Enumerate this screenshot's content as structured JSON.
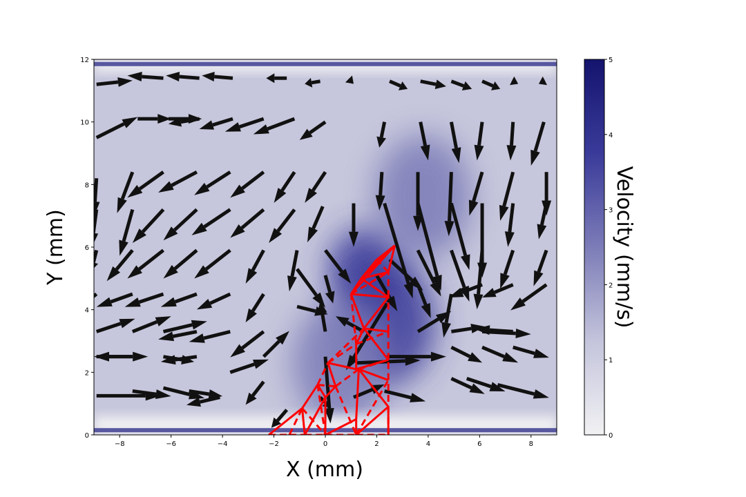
{
  "chart_data": {
    "type": "heatmap",
    "xlabel": "X (mm)",
    "ylabel": "Y (mm)",
    "xlim": [
      -9,
      9
    ],
    "ylim": [
      0,
      12
    ],
    "x_ticks": [
      -8,
      -6,
      -4,
      -2,
      0,
      2,
      4,
      6,
      8
    ],
    "y_ticks": [
      0,
      2,
      4,
      6,
      8,
      10,
      12
    ],
    "colorbar": {
      "label": "Velocity (mm/s)",
      "range": [
        0,
        5
      ],
      "ticks": [
        0,
        1,
        2,
        3,
        4,
        5
      ],
      "colormap": [
        "#f1f1f3",
        "#c4c4dc",
        "#7c7cb8",
        "#3a3a9a",
        "#14146e"
      ]
    },
    "velocity_hotspots": [
      {
        "x": 1.6,
        "y": 5.3,
        "velocity": 4.0
      },
      {
        "x": 2.4,
        "y": 3.6,
        "velocity": 3.5
      },
      {
        "x": 3.8,
        "y": 7.6,
        "velocity": 2.6
      },
      {
        "x": 0.6,
        "y": 2.3,
        "velocity": 1.9
      }
    ],
    "background_velocity": 1.0,
    "wall_lines": [
      0.15,
      11.85
    ],
    "quiver": {
      "color": "#111111",
      "vectors": [
        {
          "x": -8.9,
          "y": 11.2,
          "u": 1.4,
          "v": 0.15
        },
        {
          "x": -6.3,
          "y": 11.4,
          "u": -1.4,
          "v": 0.1
        },
        {
          "x": -4.9,
          "y": 11.4,
          "u": -1.3,
          "v": 0.1
        },
        {
          "x": -3.6,
          "y": 11.4,
          "u": -1.2,
          "v": 0.1
        },
        {
          "x": -1.5,
          "y": 11.4,
          "u": -0.8,
          "v": 0.0
        },
        {
          "x": -0.2,
          "y": 11.3,
          "u": -0.6,
          "v": -0.1
        },
        {
          "x": 1.0,
          "y": 11.3,
          "u": 0.1,
          "v": -0.1
        },
        {
          "x": 2.5,
          "y": 11.3,
          "u": 0.7,
          "v": -0.3
        },
        {
          "x": 3.7,
          "y": 11.3,
          "u": 1.0,
          "v": -0.2
        },
        {
          "x": 4.9,
          "y": 11.3,
          "u": 0.8,
          "v": -0.3
        },
        {
          "x": 6.1,
          "y": 11.3,
          "u": 0.7,
          "v": -0.3
        },
        {
          "x": 7.3,
          "y": 11.3,
          "u": 0.2,
          "v": -0.1
        },
        {
          "x": 8.5,
          "y": 11.3,
          "u": -0.2,
          "v": -0.1
        },
        {
          "x": -8.9,
          "y": 9.5,
          "u": 1.6,
          "v": 0.8
        },
        {
          "x": -7.3,
          "y": 10.1,
          "u": 1.3,
          "v": 0.0
        },
        {
          "x": -6.1,
          "y": 10.1,
          "u": 1.3,
          "v": 0.0
        },
        {
          "x": -4.9,
          "y": 10.1,
          "u": -1.2,
          "v": -0.2
        },
        {
          "x": -3.6,
          "y": 10.1,
          "u": -1.3,
          "v": -0.4
        },
        {
          "x": -2.4,
          "y": 10.1,
          "u": -1.5,
          "v": -0.5
        },
        {
          "x": -1.2,
          "y": 10.1,
          "u": -1.6,
          "v": -0.6
        },
        {
          "x": 0.0,
          "y": 10.0,
          "u": -1.0,
          "v": -0.7
        },
        {
          "x": 2.3,
          "y": 10.0,
          "u": -0.2,
          "v": -1.0
        },
        {
          "x": 3.7,
          "y": 10.0,
          "u": 0.3,
          "v": -1.5
        },
        {
          "x": 4.9,
          "y": 10.0,
          "u": 0.3,
          "v": -1.6
        },
        {
          "x": 6.1,
          "y": 10.0,
          "u": -0.2,
          "v": -1.5
        },
        {
          "x": 7.3,
          "y": 10.0,
          "u": -0.1,
          "v": -1.5
        },
        {
          "x": 8.5,
          "y": 10.0,
          "u": -0.5,
          "v": -1.7
        },
        {
          "x": -8.9,
          "y": 8.2,
          "u": -0.1,
          "v": -1.5
        },
        {
          "x": -7.5,
          "y": 8.4,
          "u": -0.6,
          "v": -1.6
        },
        {
          "x": -6.3,
          "y": 8.4,
          "u": -1.4,
          "v": -1.0
        },
        {
          "x": -5.0,
          "y": 8.4,
          "u": -1.5,
          "v": -0.8
        },
        {
          "x": -3.7,
          "y": 8.4,
          "u": -1.4,
          "v": -0.9
        },
        {
          "x": -2.4,
          "y": 8.4,
          "u": -1.3,
          "v": -1.0
        },
        {
          "x": -1.2,
          "y": 8.4,
          "u": -0.8,
          "v": -1.2
        },
        {
          "x": 0.0,
          "y": 8.4,
          "u": -0.8,
          "v": -1.2
        },
        {
          "x": 2.2,
          "y": 8.4,
          "u": -0.1,
          "v": -1.5
        },
        {
          "x": 3.6,
          "y": 8.4,
          "u": 0.0,
          "v": -2.3
        },
        {
          "x": 4.9,
          "y": 8.4,
          "u": -0.1,
          "v": -2.5
        },
        {
          "x": 6.1,
          "y": 8.4,
          "u": -0.5,
          "v": -1.7
        },
        {
          "x": 7.3,
          "y": 8.4,
          "u": -0.5,
          "v": -1.9
        },
        {
          "x": 8.6,
          "y": 8.4,
          "u": 0.0,
          "v": -1.7
        },
        {
          "x": -8.9,
          "y": 7.2,
          "u": -0.2,
          "v": -1.5
        },
        {
          "x": -7.5,
          "y": 7.2,
          "u": -0.5,
          "v": -1.8
        },
        {
          "x": -6.3,
          "y": 7.2,
          "u": -1.2,
          "v": -1.3
        },
        {
          "x": -5.0,
          "y": 7.2,
          "u": -1.3,
          "v": -1.2
        },
        {
          "x": -3.7,
          "y": 7.2,
          "u": -1.5,
          "v": -1.0
        },
        {
          "x": -2.4,
          "y": 7.2,
          "u": -1.3,
          "v": -1.1
        },
        {
          "x": -1.2,
          "y": 7.2,
          "u": -1.0,
          "v": -1.3
        },
        {
          "x": -0.1,
          "y": 7.3,
          "u": -0.6,
          "v": -1.4
        },
        {
          "x": 1.1,
          "y": 7.4,
          "u": 0.0,
          "v": -1.7
        },
        {
          "x": 2.3,
          "y": 7.4,
          "u": 1.1,
          "v": -3.7
        },
        {
          "x": 3.6,
          "y": 7.4,
          "u": 0.9,
          "v": -3.4
        },
        {
          "x": 4.9,
          "y": 7.4,
          "u": 0.7,
          "v": -2.6
        },
        {
          "x": 6.1,
          "y": 7.4,
          "u": 0.0,
          "v": -2.9
        },
        {
          "x": 7.3,
          "y": 7.4,
          "u": -0.2,
          "v": -1.7
        },
        {
          "x": 8.6,
          "y": 7.4,
          "u": -0.3,
          "v": -1.4
        },
        {
          "x": -8.9,
          "y": 5.9,
          "u": -0.2,
          "v": -0.8
        },
        {
          "x": -7.5,
          "y": 5.9,
          "u": -1.0,
          "v": -1.2
        },
        {
          "x": -6.3,
          "y": 5.9,
          "u": -1.4,
          "v": -1.1
        },
        {
          "x": -5.0,
          "y": 5.9,
          "u": -1.3,
          "v": -1.1
        },
        {
          "x": -3.7,
          "y": 5.9,
          "u": -1.4,
          "v": -1.1
        },
        {
          "x": -2.4,
          "y": 5.9,
          "u": -0.7,
          "v": -1.3
        },
        {
          "x": -1.1,
          "y": 5.9,
          "u": -0.3,
          "v": -1.6
        },
        {
          "x": 0.0,
          "y": 5.9,
          "u": 1.0,
          "v": -1.3
        },
        {
          "x": 2.5,
          "y": 5.6,
          "u": 1.3,
          "v": -1.2
        },
        {
          "x": 3.6,
          "y": 5.9,
          "u": 0.9,
          "v": -1.8
        },
        {
          "x": 4.9,
          "y": 5.9,
          "u": 0.7,
          "v": -2.0
        },
        {
          "x": 6.1,
          "y": 5.9,
          "u": -0.2,
          "v": -2.3
        },
        {
          "x": 7.3,
          "y": 5.9,
          "u": -0.5,
          "v": -1.5
        },
        {
          "x": 8.6,
          "y": 5.9,
          "u": -0.5,
          "v": -1.4
        },
        {
          "x": -8.9,
          "y": 4.5,
          "u": -1.2,
          "v": -0.9
        },
        {
          "x": -7.5,
          "y": 4.5,
          "u": -1.4,
          "v": -0.5
        },
        {
          "x": -6.3,
          "y": 4.5,
          "u": -1.5,
          "v": -0.5
        },
        {
          "x": -5.0,
          "y": 4.5,
          "u": -1.4,
          "v": -0.5
        },
        {
          "x": -3.7,
          "y": 4.5,
          "u": -1.3,
          "v": -0.6
        },
        {
          "x": -2.4,
          "y": 4.5,
          "u": -0.7,
          "v": -1.1
        },
        {
          "x": -1.1,
          "y": 5.3,
          "u": 1.1,
          "v": -1.5
        },
        {
          "x": 0.0,
          "y": 5.1,
          "u": 0.3,
          "v": -1.1
        },
        {
          "x": 2.0,
          "y": 5.1,
          "u": 0.8,
          "v": -1.4
        },
        {
          "x": 3.6,
          "y": 4.8,
          "u": 0.5,
          "v": -1.3
        },
        {
          "x": 4.9,
          "y": 4.5,
          "u": -0.3,
          "v": -1.7
        },
        {
          "x": 6.1,
          "y": 4.8,
          "u": -1.3,
          "v": -0.5
        },
        {
          "x": 7.3,
          "y": 4.8,
          "u": -1.2,
          "v": -0.5
        },
        {
          "x": 8.6,
          "y": 4.8,
          "u": -1.4,
          "v": -1.0
        },
        {
          "x": -8.9,
          "y": 3.3,
          "u": 1.5,
          "v": 0.5
        },
        {
          "x": -7.5,
          "y": 3.3,
          "u": 1.5,
          "v": 0.6
        },
        {
          "x": -6.3,
          "y": 3.3,
          "u": 1.7,
          "v": 0.4
        },
        {
          "x": -5.0,
          "y": 3.3,
          "u": -1.5,
          "v": -0.3
        },
        {
          "x": -3.7,
          "y": 3.3,
          "u": -1.6,
          "v": -0.4
        },
        {
          "x": -2.4,
          "y": 3.3,
          "u": -1.3,
          "v": -1.0
        },
        {
          "x": -1.1,
          "y": 4.1,
          "u": 1.2,
          "v": -0.3
        },
        {
          "x": 0.0,
          "y": 3.3,
          "u": -0.2,
          "v": 1.2
        },
        {
          "x": 1.5,
          "y": 3.3,
          "u": -1.1,
          "v": 0.6
        },
        {
          "x": 2.4,
          "y": 4.2,
          "u": -1.6,
          "v": -2.6
        },
        {
          "x": 3.6,
          "y": 3.3,
          "u": 1.3,
          "v": 0.8
        },
        {
          "x": 4.9,
          "y": 3.3,
          "u": 1.3,
          "v": 0.2
        },
        {
          "x": 6.1,
          "y": 3.3,
          "u": 1.9,
          "v": -0.1
        },
        {
          "x": 7.3,
          "y": 3.3,
          "u": -1.5,
          "v": 0.1
        },
        {
          "x": -8.9,
          "y": 2.5,
          "u": 2.0,
          "v": 0.0
        },
        {
          "x": -7.5,
          "y": 2.5,
          "u": -1.5,
          "v": 0.0
        },
        {
          "x": -6.3,
          "y": 2.5,
          "u": 1.2,
          "v": -0.2
        },
        {
          "x": -5.0,
          "y": 2.5,
          "u": -1.4,
          "v": -0.2
        },
        {
          "x": -3.7,
          "y": 2.0,
          "u": 1.5,
          "v": 0.5
        },
        {
          "x": -2.4,
          "y": 2.5,
          "u": 1.0,
          "v": 1.0
        },
        {
          "x": 0.0,
          "y": 2.5,
          "u": 0.2,
          "v": -2.6
        },
        {
          "x": 1.2,
          "y": 2.3,
          "u": 2.5,
          "v": 0.1
        },
        {
          "x": 2.4,
          "y": 2.5,
          "u": 2.3,
          "v": 0.0
        },
        {
          "x": 4.9,
          "y": 2.8,
          "u": 1.2,
          "v": -0.6
        },
        {
          "x": 6.1,
          "y": 2.8,
          "u": 1.4,
          "v": -0.6
        },
        {
          "x": 7.3,
          "y": 2.8,
          "u": 1.4,
          "v": -0.4
        },
        {
          "x": -8.9,
          "y": 1.25,
          "u": 2.5,
          "v": 0.0
        },
        {
          "x": -7.5,
          "y": 1.4,
          "u": 1.5,
          "v": -0.2
        },
        {
          "x": -6.3,
          "y": 1.5,
          "u": 1.6,
          "v": -0.4
        },
        {
          "x": -5.3,
          "y": 1.4,
          "u": 1.3,
          "v": -0.2
        },
        {
          "x": -4.1,
          "y": 1.2,
          "u": -1.3,
          "v": -0.3
        },
        {
          "x": -2.4,
          "y": 1.7,
          "u": -0.7,
          "v": -0.9
        },
        {
          "x": -1.5,
          "y": 0.8,
          "u": -0.6,
          "v": -0.7
        },
        {
          "x": -0.2,
          "y": 1.2,
          "u": 0.4,
          "v": -0.4
        },
        {
          "x": 1.1,
          "y": 1.2,
          "u": 1.2,
          "v": 0.5
        },
        {
          "x": 2.3,
          "y": 1.4,
          "u": 1.6,
          "v": -0.4
        },
        {
          "x": 4.9,
          "y": 1.8,
          "u": 1.3,
          "v": -0.6
        },
        {
          "x": 5.5,
          "y": 1.8,
          "u": 1.5,
          "v": -0.5
        },
        {
          "x": 6.7,
          "y": 1.6,
          "u": 2.0,
          "v": -0.5
        }
      ]
    },
    "mesh": {
      "color": "#ff0000",
      "nodes": [
        [
          -2.2,
          0.0
        ],
        [
          -1.4,
          0.0
        ],
        [
          -0.8,
          0.0
        ],
        [
          0.0,
          0.0
        ],
        [
          1.2,
          0.0
        ],
        [
          2.45,
          0.0
        ],
        [
          -0.9,
          0.85
        ],
        [
          0.0,
          1.2
        ],
        [
          1.2,
          0.5
        ],
        [
          2.45,
          0.9
        ],
        [
          -0.3,
          1.6
        ],
        [
          0.4,
          1.55
        ],
        [
          1.3,
          2.1
        ],
        [
          2.45,
          1.75
        ],
        [
          0.1,
          2.3
        ],
        [
          1.2,
          2.1
        ],
        [
          2.45,
          2.4
        ],
        [
          1.2,
          2.9
        ],
        [
          1.5,
          3.4
        ],
        [
          2.45,
          3.3
        ],
        [
          1.0,
          4.5
        ],
        [
          2.45,
          4.4
        ],
        [
          1.4,
          5.0
        ],
        [
          2.45,
          5.2
        ],
        [
          2.0,
          5.6
        ],
        [
          2.7,
          6.05
        ]
      ],
      "solid_edges": [
        [
          0,
          6
        ],
        [
          6,
          2
        ],
        [
          2,
          7
        ],
        [
          7,
          3
        ],
        [
          3,
          8
        ],
        [
          8,
          4
        ],
        [
          4,
          9
        ],
        [
          9,
          5
        ],
        [
          6,
          10
        ],
        [
          10,
          7
        ],
        [
          7,
          11
        ],
        [
          8,
          12
        ],
        [
          9,
          12
        ],
        [
          12,
          13
        ],
        [
          11,
          14
        ],
        [
          14,
          15
        ],
        [
          15,
          16
        ],
        [
          12,
          15
        ],
        [
          15,
          17
        ],
        [
          17,
          18
        ],
        [
          18,
          19
        ],
        [
          16,
          18
        ],
        [
          18,
          20
        ],
        [
          20,
          21
        ],
        [
          18,
          21
        ],
        [
          20,
          22
        ],
        [
          22,
          23
        ],
        [
          21,
          22
        ],
        [
          22,
          24
        ],
        [
          24,
          25
        ],
        [
          23,
          25
        ],
        [
          20,
          25
        ],
        [
          22,
          25
        ]
      ],
      "dashed_edges": [
        [
          0,
          1
        ],
        [
          1,
          2
        ],
        [
          2,
          3
        ],
        [
          3,
          4
        ],
        [
          4,
          5
        ],
        [
          1,
          6
        ],
        [
          6,
          3
        ],
        [
          3,
          10
        ],
        [
          10,
          11
        ],
        [
          11,
          4
        ],
        [
          4,
          13
        ],
        [
          5,
          13
        ],
        [
          13,
          16
        ],
        [
          16,
          19
        ],
        [
          19,
          21
        ],
        [
          21,
          23
        ],
        [
          10,
          14
        ],
        [
          14,
          17
        ],
        [
          17,
          20
        ],
        [
          11,
          12
        ],
        [
          12,
          16
        ],
        [
          14,
          18
        ],
        [
          17,
          19
        ],
        [
          20,
          23
        ],
        [
          23,
          24
        ]
      ]
    }
  }
}
